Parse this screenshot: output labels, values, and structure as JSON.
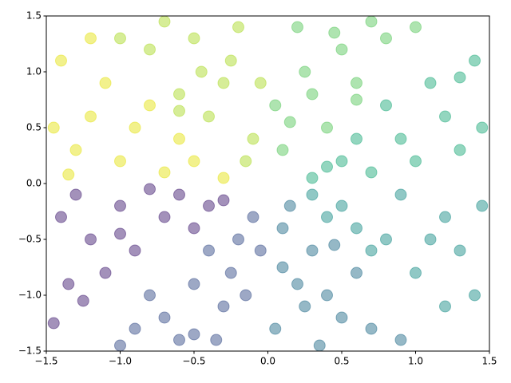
{
  "chart_data": {
    "type": "scatter",
    "xlim": [
      -1.5,
      1.5
    ],
    "ylim": [
      -1.5,
      1.5
    ],
    "xticks": [
      {
        "value": -1.5,
        "label": "−1.5"
      },
      {
        "value": -1.0,
        "label": "−1.0"
      },
      {
        "value": -0.5,
        "label": "−0.5"
      },
      {
        "value": 0,
        "label": "0.0"
      },
      {
        "value": 0.5,
        "label": "0.5"
      },
      {
        "value": 1.0,
        "label": "1.0"
      },
      {
        "value": 1.5,
        "label": "1.5"
      }
    ],
    "yticks": [
      {
        "value": -1.5,
        "label": "−1.5"
      },
      {
        "value": -1.0,
        "label": "−1.0"
      },
      {
        "value": -0.5,
        "label": "−0.5"
      },
      {
        "value": 0,
        "label": "0.0"
      },
      {
        "value": 0.5,
        "label": "0.5"
      },
      {
        "value": 1.0,
        "label": "1.0"
      },
      {
        "value": 1.5,
        "label": "1.5"
      }
    ],
    "grid": false,
    "series": [
      {
        "color": "#482475",
        "x": [
          -1.4,
          -1.2,
          -1.0,
          -0.9,
          -1.3,
          -0.7,
          -1.45,
          -1.1,
          -0.6,
          -0.5,
          -1.35,
          -0.8,
          -1.25,
          -0.4,
          -1.0,
          -0.3
        ],
        "y": [
          -0.3,
          -0.5,
          -0.2,
          -0.6,
          -0.1,
          -0.3,
          -1.25,
          -0.8,
          -0.1,
          -0.4,
          -0.9,
          -0.05,
          -1.05,
          -0.2,
          -0.45,
          -0.15
        ]
      },
      {
        "color": "#3b528b",
        "x": [
          -0.2,
          -0.5,
          -0.9,
          -0.3,
          -0.7,
          -0.1,
          -0.4,
          -1.0,
          -0.6,
          -0.15,
          -0.25,
          -0.5,
          -0.05,
          -0.8,
          -0.35
        ],
        "y": [
          -0.5,
          -0.9,
          -1.3,
          -1.1,
          -1.2,
          -0.3,
          -0.6,
          -1.45,
          -1.4,
          -1.0,
          -0.8,
          -1.35,
          -0.6,
          -1.0,
          -1.4
        ]
      },
      {
        "color": "#2c728e",
        "x": [
          0.1,
          0.2,
          0.5,
          0.3,
          0.05,
          0.4,
          0.7,
          0.15,
          0.6,
          0.35,
          0.25,
          0.9,
          0.45,
          0.1
        ],
        "y": [
          -0.4,
          -0.9,
          -1.2,
          -0.6,
          -1.3,
          -1.0,
          -1.3,
          -0.2,
          -0.8,
          -1.45,
          -1.1,
          -1.4,
          -0.55,
          -0.75
        ]
      },
      {
        "color": "#21918c",
        "x": [
          0.5,
          0.8,
          1.2,
          1.0,
          1.4,
          0.6,
          0.3,
          1.3,
          0.9,
          1.1,
          1.45,
          0.7,
          1.2,
          0.4
        ],
        "y": [
          -0.2,
          -0.5,
          -0.3,
          -0.8,
          -1.0,
          -0.4,
          -0.1,
          -0.6,
          -0.1,
          -0.5,
          -0.2,
          -0.6,
          -1.1,
          -0.3
        ]
      },
      {
        "color": "#28ae80",
        "x": [
          0.5,
          0.9,
          1.3,
          1.1,
          0.7,
          1.4,
          0.3,
          1.0,
          1.2,
          0.6,
          1.45,
          0.8,
          0.4,
          1.3
        ],
        "y": [
          0.2,
          0.4,
          0.3,
          0.9,
          0.1,
          1.1,
          0.05,
          0.2,
          0.6,
          0.4,
          0.5,
          0.7,
          0.15,
          0.95
        ]
      },
      {
        "color": "#5ec962",
        "x": [
          0.1,
          0.3,
          0.5,
          0.2,
          0.6,
          0.8,
          0.05,
          0.4,
          0.7,
          0.25,
          1.0,
          0.15,
          0.45,
          0.6
        ],
        "y": [
          0.3,
          0.8,
          1.2,
          1.4,
          0.9,
          1.3,
          0.7,
          0.5,
          1.45,
          1.0,
          1.4,
          0.55,
          1.35,
          0.75
        ]
      },
      {
        "color": "#addc30",
        "x": [
          -0.1,
          -0.3,
          -0.5,
          -0.2,
          -0.6,
          -0.8,
          -0.05,
          -0.4,
          -0.7,
          -0.25,
          -1.0,
          -0.15,
          -0.45,
          -0.6
        ],
        "y": [
          0.4,
          0.9,
          1.3,
          1.4,
          0.8,
          1.2,
          0.9,
          0.6,
          1.45,
          1.1,
          1.3,
          0.2,
          1.0,
          0.65
        ]
      },
      {
        "color": "#e5e419",
        "x": [
          -0.5,
          -0.9,
          -1.3,
          -1.1,
          -0.7,
          -1.4,
          -0.3,
          -1.0,
          -1.2,
          -0.6,
          -1.45,
          -0.8,
          -1.35,
          -1.2
        ],
        "y": [
          0.2,
          0.5,
          0.3,
          0.9,
          0.1,
          1.1,
          0.05,
          0.2,
          0.6,
          0.4,
          0.5,
          0.7,
          0.08,
          1.3
        ]
      }
    ]
  }
}
